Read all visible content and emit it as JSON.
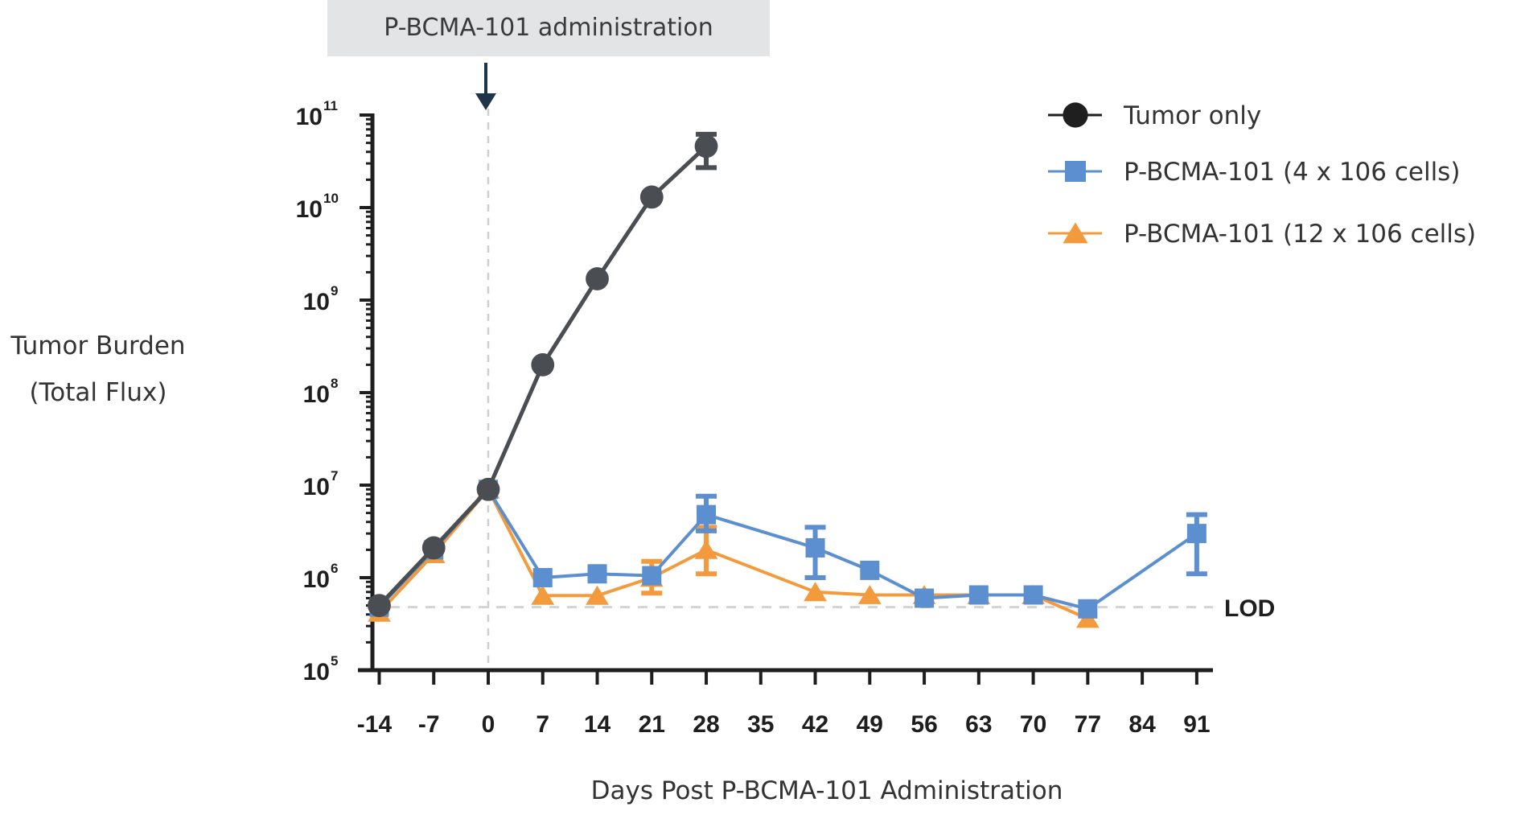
{
  "chart_data": {
    "type": "line",
    "title": "",
    "annotation": {
      "banner_label": "P-BCMA-101 administration",
      "arrow_day": 0
    },
    "xlabel": "Days Post P-BCMA-101 Administration",
    "ylabel_lines": [
      "Tumor Burden",
      "(Total Flux)"
    ],
    "y_scale": "log",
    "ylim": [
      100000,
      100000000000
    ],
    "y_ticks": [
      {
        "base": "10",
        "exp": "5",
        "value": 100000
      },
      {
        "base": "10",
        "exp": "6",
        "value": 1000000
      },
      {
        "base": "10",
        "exp": "7",
        "value": 10000000
      },
      {
        "base": "10",
        "exp": "8",
        "value": 100000000
      },
      {
        "base": "10",
        "exp": "9",
        "value": 1000000000
      },
      {
        "base": "10",
        "exp": "10",
        "value": 10000000000
      },
      {
        "base": "10",
        "exp": "11",
        "value": 100000000000
      }
    ],
    "xlim": [
      -14,
      91
    ],
    "x_ticks": [
      -14,
      -7,
      0,
      7,
      14,
      21,
      28,
      35,
      42,
      49,
      56,
      63,
      70,
      77,
      84,
      91
    ],
    "lod": {
      "label": "LOD",
      "value": 480000
    },
    "legend_position": "top-right",
    "grid": false,
    "series": [
      {
        "name": "Tumor only",
        "marker": "circle",
        "color": "#4a4d52",
        "legend_color": "#1f1f1f",
        "points": [
          {
            "x": -14,
            "y": 500000
          },
          {
            "x": -7,
            "y": 2100000
          },
          {
            "x": 0,
            "y": 9000000
          },
          {
            "x": 7,
            "y": 200000000
          },
          {
            "x": 14,
            "y": 1700000000
          },
          {
            "x": 21,
            "y": 13000000000
          },
          {
            "x": 28,
            "y": 46000000000,
            "err_low": 27000000000,
            "err_high": 62000000000
          }
        ]
      },
      {
        "name": "P-BCMA-101 (4 x 106 cells)",
        "marker": "square",
        "color": "#5b8fd0",
        "legend_color": "#5b8fd0",
        "points": [
          {
            "x": -14,
            "y": 480000
          },
          {
            "x": -7,
            "y": 2000000
          },
          {
            "x": 0,
            "y": 9000000
          },
          {
            "x": 7,
            "y": 1000000
          },
          {
            "x": 14,
            "y": 1100000
          },
          {
            "x": 21,
            "y": 1050000
          },
          {
            "x": 28,
            "y": 4800000,
            "err_low": 3200000,
            "err_high": 7600000
          },
          {
            "x": 42,
            "y": 2100000,
            "err_low": 1000000,
            "err_high": 3500000
          },
          {
            "x": 49,
            "y": 1200000
          },
          {
            "x": 56,
            "y": 600000
          },
          {
            "x": 63,
            "y": 650000
          },
          {
            "x": 70,
            "y": 650000
          },
          {
            "x": 77,
            "y": 460000
          },
          {
            "x": 91,
            "y": 3000000,
            "err_low": 1100000,
            "err_high": 4800000
          }
        ]
      },
      {
        "name": "P-BCMA-101 (12 x 106 cells)",
        "marker": "triangle",
        "color": "#f39a3d",
        "legend_color": "#f39a3d",
        "points": [
          {
            "x": -14,
            "y": 420000
          },
          {
            "x": -7,
            "y": 1800000
          },
          {
            "x": 0,
            "y": 9000000
          },
          {
            "x": 7,
            "y": 640000
          },
          {
            "x": 14,
            "y": 640000
          },
          {
            "x": 21,
            "y": 1000000,
            "err_low": 680000,
            "err_high": 1500000
          },
          {
            "x": 28,
            "y": 2000000,
            "err_low": 1100000,
            "err_high": 3500000
          },
          {
            "x": 42,
            "y": 700000
          },
          {
            "x": 49,
            "y": 650000
          },
          {
            "x": 56,
            "y": 650000
          },
          {
            "x": 63,
            "y": 650000
          },
          {
            "x": 70,
            "y": 650000
          },
          {
            "x": 77,
            "y": 360000
          }
        ]
      }
    ]
  }
}
